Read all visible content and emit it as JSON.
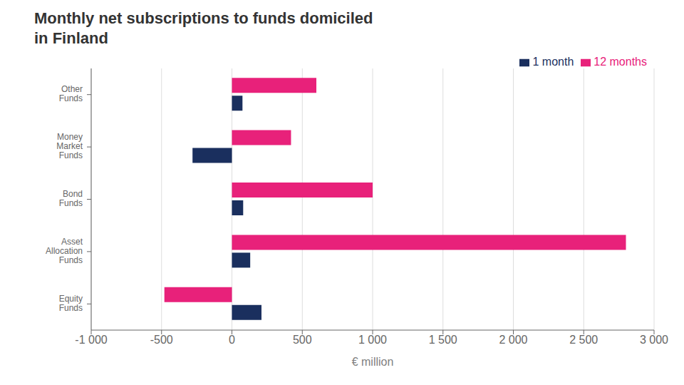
{
  "chart_data": {
    "type": "bar",
    "orientation": "horizontal",
    "title": "Monthly net subscriptions to funds domiciled\nin Finland",
    "categories": [
      "Other\nFunds",
      "Money\nMarket\nFunds",
      "Bond\nFunds",
      "Asset\nAllocation\nFunds",
      "Equity\nFunds"
    ],
    "series": [
      {
        "name": "12 months",
        "color": "#e8217a",
        "values": [
          600,
          420,
          1000,
          2800,
          -480
        ]
      },
      {
        "name": "1 month",
        "color": "#1a2f5e",
        "values": [
          75,
          -280,
          80,
          130,
          210
        ]
      }
    ],
    "xlabel": "€ million",
    "xlim": [
      -1000,
      3000
    ],
    "xticks": [
      {
        "value": -1000,
        "label": "-1 000"
      },
      -500,
      0,
      500,
      {
        "value": 1000,
        "label": "1 000"
      },
      {
        "value": 1500,
        "label": "1 500"
      },
      {
        "value": 2000,
        "label": "2 000"
      },
      {
        "value": 2500,
        "label": "2 500"
      },
      {
        "value": 3000,
        "label": "3 000"
      }
    ],
    "grid": true,
    "legend": "upper right"
  }
}
